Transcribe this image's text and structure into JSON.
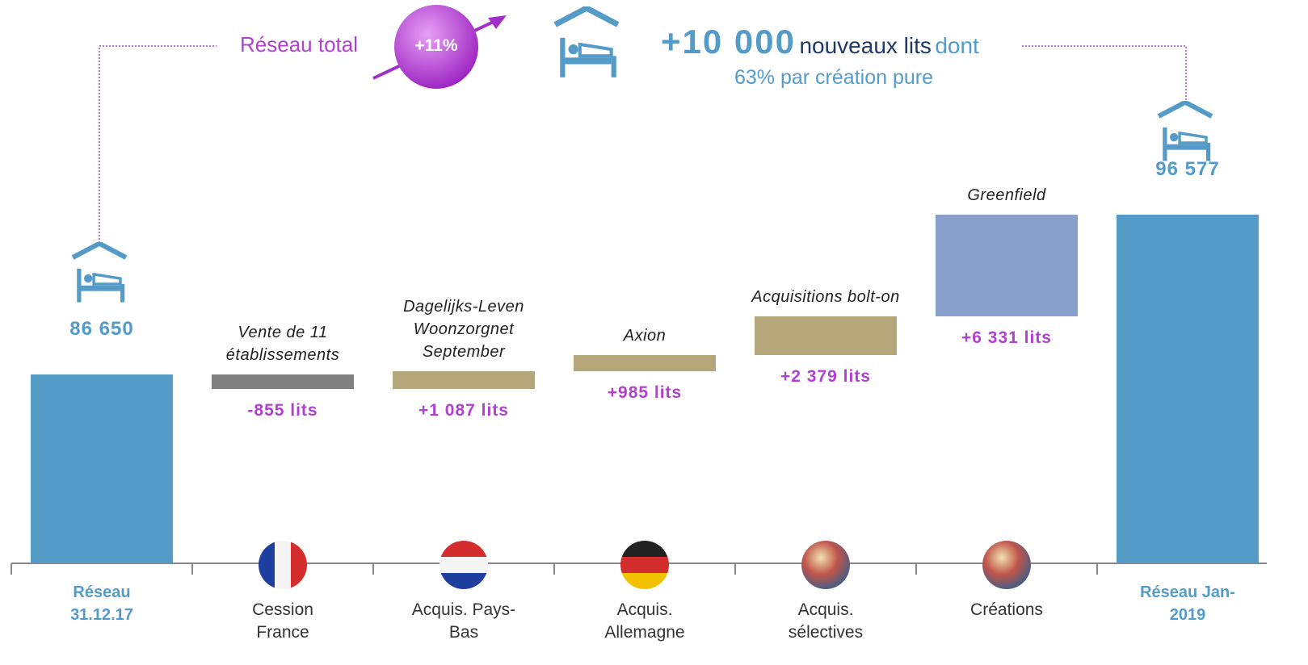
{
  "header": {
    "network_label": "Réseau total",
    "growth": "+11%",
    "new_beds": "+10 000",
    "new_beds_text": "nouveaux lits",
    "new_beds_suffix": "dont",
    "subtext": "63% par création pure"
  },
  "chart_data": {
    "type": "waterfall",
    "categories": [
      "Réseau 31.12.17",
      "Cession France",
      "Acquis. Pays-Bas",
      "Acquis. Allemagne",
      "Acquis. sélectives",
      "Créations",
      "Réseau Jan-2019"
    ],
    "notes": [
      null,
      "Vente de 11 établissements",
      "Dagelijks-Leven Woonzorgnet September",
      "Axion",
      "Acquisitions bolt-on",
      "Greenfield",
      null
    ],
    "measure": [
      "absolute",
      "relative",
      "relative",
      "relative",
      "relative",
      "relative",
      "total"
    ],
    "values": [
      86650,
      -855,
      1087,
      985,
      2379,
      6331,
      96577
    ],
    "value_labels": [
      "86 650",
      "-855 lits",
      "+1 087 lits",
      "+985 lits",
      "+2 379 lits",
      "+6 331 lits",
      "96 577"
    ],
    "colors": [
      "#559bc8",
      "#808080",
      "#b5a77a",
      "#b5a77a",
      "#b5a77a",
      "#8aa0cc",
      "#559bc8"
    ],
    "total_label_color": "#559bc8",
    "delta_label_color": "#b040d0",
    "ylim": [
      75000,
      97500
    ]
  }
}
